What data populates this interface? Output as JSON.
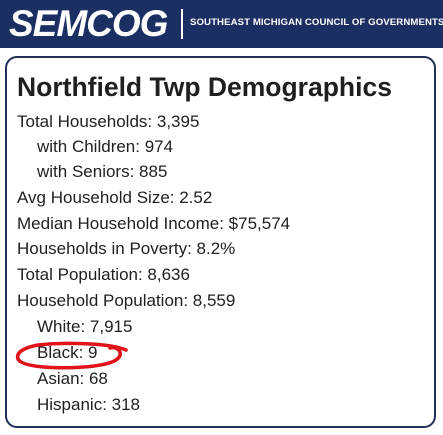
{
  "header": {
    "logo_text": "SEMCOG",
    "tagline": "SOUTHEAST MICHIGAN COUNCIL OF GOVERNMENTS",
    "background_color": "#1b2f63"
  },
  "card": {
    "title": "Northfield Twp Demographics",
    "lines": [
      {
        "text": "Total Households: 3,395",
        "indent": 0
      },
      {
        "text": "with Children: 974",
        "indent": 1
      },
      {
        "text": "with Seniors: 885",
        "indent": 1
      },
      {
        "text": "Avg Household Size: 2.52",
        "indent": 0
      },
      {
        "text": "Median Household Income: $75,574",
        "indent": 0
      },
      {
        "text": "Households in Poverty: 8.2%",
        "indent": 0
      },
      {
        "text": "Total Population: 8,636",
        "indent": 0
      },
      {
        "text": "Household Population: 8,559",
        "indent": 0
      },
      {
        "text": "White: 7,915",
        "indent": 1
      },
      {
        "text": "Black: 9",
        "indent": 1
      },
      {
        "text": "Asian: 68",
        "indent": 1
      },
      {
        "text": "Hispanic: 318",
        "indent": 1
      }
    ]
  },
  "annotation": {
    "highlight_color": "#e0141b",
    "highlighted_line": "Black: 9"
  }
}
